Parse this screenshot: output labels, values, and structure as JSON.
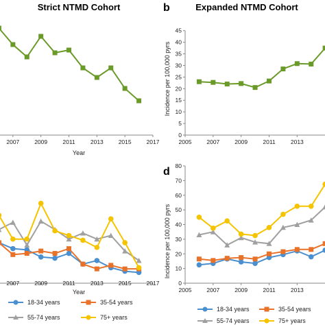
{
  "chart_data": [
    {
      "type": "line",
      "panel": "a",
      "title": "Strict NTMD Cohort",
      "xlabel": "Year",
      "ylabel": "",
      "xlim": [
        2005,
        2017
      ],
      "ylim": [
        0,
        45
      ],
      "x_ticks": [
        "2007",
        "2009",
        "2011",
        "2013",
        "2015",
        "2017"
      ],
      "y_ticks": [],
      "series": [
        {
          "color": "#6a9a28",
          "marker": "square",
          "x": [
            2006,
            2007,
            2008,
            2009,
            2010,
            2011,
            2012,
            2013,
            2014,
            2015,
            2016
          ],
          "y": [
            39.0,
            33.0,
            28.5,
            36.0,
            30.0,
            31.0,
            24.5,
            21.0,
            24.5,
            17.0,
            12.5
          ]
        }
      ]
    },
    {
      "type": "line",
      "panel": "b",
      "title": "Expanded NTMD Cohort",
      "xlabel": "",
      "ylabel": "Incidence per 100,000 pyrs",
      "xlim": [
        2005,
        2017
      ],
      "ylim": [
        0,
        45
      ],
      "x_ticks": [
        "2005",
        "2007",
        "2009",
        "2011",
        "2013",
        "201"
      ],
      "y_ticks": [
        "0",
        "5",
        "10",
        "15",
        "20",
        "25",
        "30",
        "35",
        "40",
        "45"
      ],
      "series": [
        {
          "color": "#6a9a28",
          "marker": "square",
          "x": [
            2006,
            2007,
            2008,
            2009,
            2010,
            2011,
            2012,
            2013,
            2014,
            2015
          ],
          "y": [
            23.0,
            22.7,
            22.0,
            22.2,
            20.5,
            23.3,
            28.5,
            30.8,
            30.6,
            37.5
          ]
        }
      ]
    },
    {
      "type": "line",
      "panel": "c",
      "title": "",
      "xlabel": "Year",
      "ylabel": "",
      "xlim": [
        2005,
        2017
      ],
      "ylim": [
        0,
        80
      ],
      "x_ticks": [
        "2007",
        "2009",
        "2011",
        "2013",
        "2015",
        "2017"
      ],
      "y_ticks": [],
      "legend": [
        "18-34 years",
        "35-54 years",
        "55-74 years",
        "75+ years"
      ],
      "series": [
        {
          "name": "18-34 years",
          "color": "#4a8fcf",
          "marker": "circle",
          "x": [
            2006,
            2007,
            2008,
            2009,
            2010,
            2011,
            2012,
            2013,
            2014,
            2015,
            2016
          ],
          "y": [
            34,
            29,
            28,
            22,
            21,
            25,
            16,
            19,
            13,
            10,
            9
          ]
        },
        {
          "name": "35-54 years",
          "color": "#e8722a",
          "marker": "square",
          "x": [
            2006,
            2007,
            2008,
            2009,
            2010,
            2011,
            2012,
            2013,
            2014,
            2015,
            2016
          ],
          "y": [
            34,
            24,
            25,
            27,
            25,
            29,
            16,
            12,
            15,
            12,
            12
          ]
        },
        {
          "name": "55-74 years",
          "color": "#a0a0a0",
          "marker": "triangle",
          "x": [
            2006,
            2007,
            2008,
            2009,
            2010,
            2011,
            2012,
            2013,
            2014,
            2015,
            2016
          ],
          "y": [
            45,
            51,
            32,
            52,
            45,
            37,
            42,
            37,
            40,
            27,
            19
          ]
        },
        {
          "name": "75+ years",
          "color": "#f5c400",
          "marker": "circle",
          "x": [
            2006,
            2007,
            2008,
            2009,
            2010,
            2011,
            2012,
            2013,
            2014,
            2015,
            2016
          ],
          "y": [
            57,
            37,
            37,
            67,
            44,
            40,
            36,
            30,
            54,
            34,
            13
          ]
        }
      ]
    },
    {
      "type": "line",
      "panel": "d",
      "title": "",
      "xlabel": "",
      "ylabel": "Incidence per 100,000 pyrs",
      "xlim": [
        2005,
        2017
      ],
      "ylim": [
        0,
        80
      ],
      "x_ticks": [
        "2005",
        "2007",
        "2009",
        "2011",
        "2013",
        "201"
      ],
      "y_ticks": [
        "0",
        "10",
        "20",
        "30",
        "40",
        "50",
        "60",
        "70",
        "80"
      ],
      "legend": [
        "18-34 years",
        "35-54 years",
        "55-74 years",
        "75+ years"
      ],
      "series": [
        {
          "name": "18-34 years",
          "color": "#4a8fcf",
          "marker": "circle",
          "x": [
            2006,
            2007,
            2008,
            2009,
            2010,
            2011,
            2012,
            2013,
            2014,
            2015
          ],
          "y": [
            12.5,
            13.5,
            16.5,
            14.5,
            13.5,
            17.5,
            19.5,
            22,
            18,
            22.5
          ]
        },
        {
          "name": "35-54 years",
          "color": "#e8722a",
          "marker": "square",
          "x": [
            2006,
            2007,
            2008,
            2009,
            2010,
            2011,
            2012,
            2013,
            2014,
            2015
          ],
          "y": [
            16.5,
            15.5,
            17,
            17.5,
            16.5,
            20,
            21.5,
            23,
            23,
            27
          ]
        },
        {
          "name": "55-74 years",
          "color": "#a0a0a0",
          "marker": "triangle",
          "x": [
            2006,
            2007,
            2008,
            2009,
            2010,
            2011,
            2012,
            2013,
            2014,
            2015
          ],
          "y": [
            33,
            35,
            26,
            31,
            28,
            27,
            38,
            40,
            43,
            52
          ]
        },
        {
          "name": "75+ years",
          "color": "#f5c400",
          "marker": "circle",
          "x": [
            2006,
            2007,
            2008,
            2009,
            2010,
            2011,
            2012,
            2013,
            2014,
            2015
          ],
          "y": [
            45,
            37.5,
            42.5,
            33.5,
            32.5,
            38,
            47,
            52.5,
            52.5,
            67.5
          ]
        }
      ]
    }
  ],
  "legend_c": {
    "item1": "18-34 years",
    "item2": "35-54 years",
    "item3": "55-74 years",
    "item4": "75+ years"
  },
  "legend_d": {
    "item1": "18-34 years",
    "item2": "35-54 years",
    "item3": "55-74 years",
    "item4": "75+ years"
  },
  "panel_labels": {
    "b": "b",
    "d": "d"
  }
}
